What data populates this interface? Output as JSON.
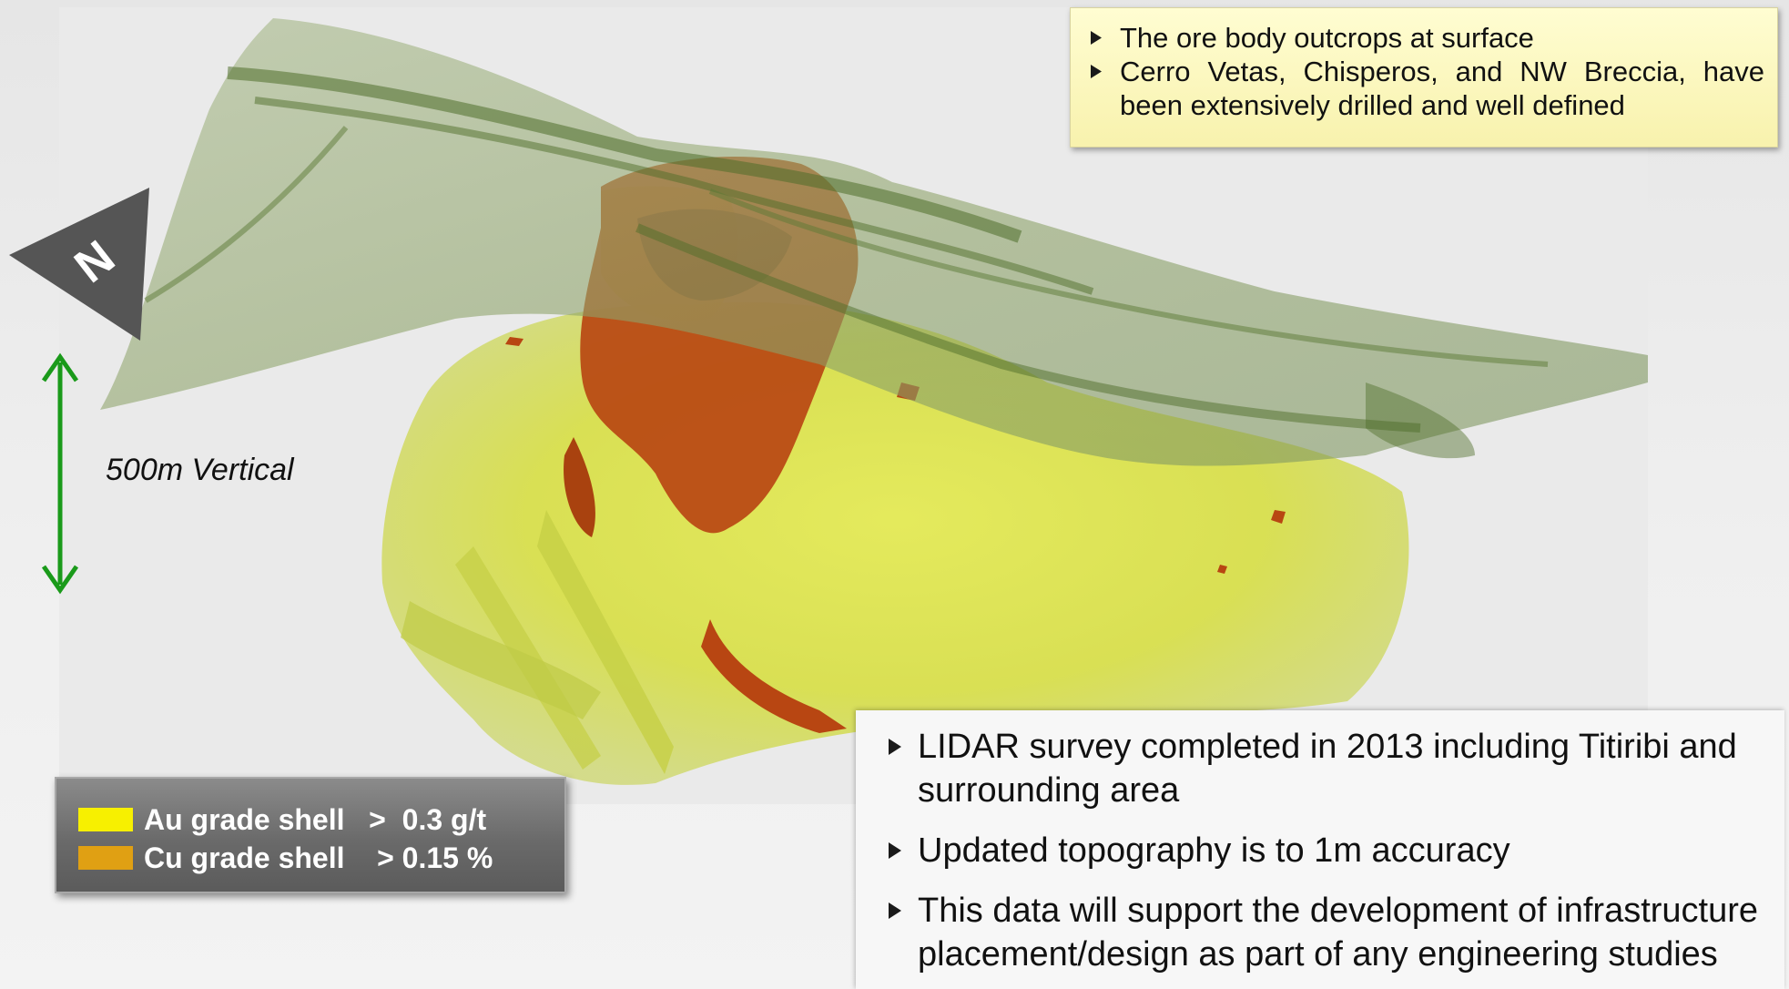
{
  "top_note": {
    "bullets": [
      "The ore body outcrops at surface",
      "Cerro Vetas, Chisperos, and NW Breccia, have been extensively drilled and well defined"
    ]
  },
  "bottom_note": {
    "bullets": [
      "LIDAR survey completed in 2013 including Titiribi and surrounding area",
      "Updated topography is to 1m accuracy",
      "This data will support the development of infrastructure placement/design as part of any engineering studies"
    ]
  },
  "scale_bar": {
    "label": "500m Vertical",
    "color": "#1a9a1a"
  },
  "north_arrow": {
    "letter": "N"
  },
  "legend": {
    "items": [
      {
        "label": "Au grade shell   >  0.3 g/t",
        "color": "#f7f000"
      },
      {
        "label": "Cu grade shell    > 0.15 %",
        "color": "#e0a013"
      }
    ]
  },
  "colors": {
    "topography": "#8fa86a",
    "topography_dark": "#4f6e2a",
    "au_shell": "#d7e24a",
    "cu_shell": "#b84612"
  }
}
